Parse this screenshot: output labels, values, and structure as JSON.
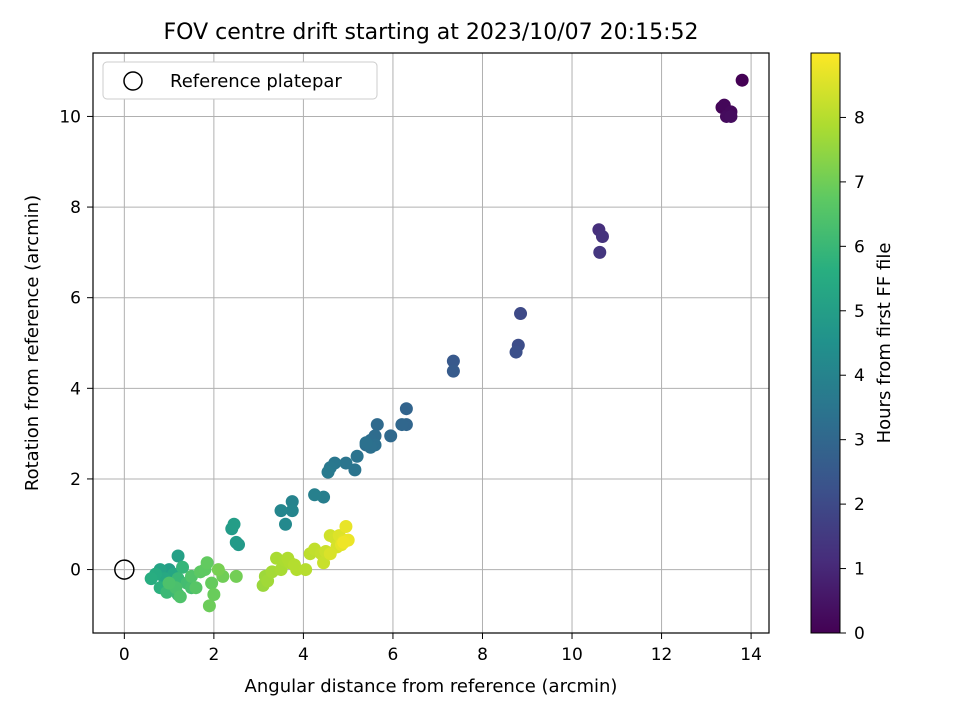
{
  "chart_data": {
    "type": "scatter",
    "title": "FOV centre drift starting at 2023/10/07 20:15:52",
    "xlabel": "Angular distance from reference (arcmin)",
    "ylabel": "Rotation from reference (arcmin)",
    "xlim": [
      -0.7,
      14.4
    ],
    "ylim": [
      -1.4,
      11.4
    ],
    "xticks": [
      0,
      2,
      4,
      6,
      8,
      10,
      12,
      14
    ],
    "yticks": [
      0,
      2,
      4,
      6,
      8,
      10
    ],
    "grid": true,
    "legend": {
      "placement": "top-left",
      "entries": [
        "Reference platepar"
      ]
    },
    "reference_point": {
      "x": 0,
      "y": 0
    },
    "colorbar": {
      "label": "Hours from first FF file",
      "colormap": "viridis",
      "range": [
        0,
        9
      ],
      "ticks": [
        0,
        1,
        2,
        3,
        4,
        5,
        6,
        7,
        8
      ]
    },
    "points": [
      [
        13.8,
        10.8,
        0.0
      ],
      [
        13.35,
        10.2,
        0.1
      ],
      [
        13.4,
        10.25,
        0.15
      ],
      [
        13.55,
        10.1,
        0.2
      ],
      [
        13.45,
        10.0,
        0.25
      ],
      [
        13.55,
        10.0,
        0.3
      ],
      [
        10.6,
        7.5,
        1.2
      ],
      [
        10.68,
        7.35,
        1.3
      ],
      [
        10.62,
        7.0,
        1.4
      ],
      [
        8.85,
        5.65,
        2.0
      ],
      [
        8.8,
        4.95,
        2.1
      ],
      [
        8.75,
        4.8,
        2.2
      ],
      [
        7.35,
        4.6,
        2.5
      ],
      [
        7.35,
        4.38,
        2.55
      ],
      [
        6.3,
        3.55,
        2.9
      ],
      [
        6.3,
        3.2,
        2.95
      ],
      [
        6.2,
        3.2,
        3.0
      ],
      [
        5.95,
        2.95,
        3.05
      ],
      [
        5.65,
        3.2,
        3.1
      ],
      [
        5.6,
        2.95,
        3.15
      ],
      [
        5.5,
        2.85,
        3.2
      ],
      [
        5.4,
        2.75,
        3.25
      ],
      [
        5.6,
        2.75,
        3.28
      ],
      [
        5.5,
        2.7,
        3.3
      ],
      [
        5.4,
        2.8,
        3.35
      ],
      [
        5.2,
        2.5,
        3.4
      ],
      [
        5.15,
        2.2,
        3.45
      ],
      [
        4.95,
        2.35,
        3.5
      ],
      [
        4.7,
        2.35,
        3.55
      ],
      [
        4.6,
        2.25,
        3.6
      ],
      [
        4.55,
        2.15,
        3.65
      ],
      [
        4.45,
        1.6,
        3.8
      ],
      [
        4.25,
        1.65,
        3.9
      ],
      [
        3.75,
        1.5,
        4.0
      ],
      [
        3.75,
        1.3,
        4.05
      ],
      [
        3.5,
        1.3,
        4.1
      ],
      [
        3.6,
        1.0,
        4.2
      ],
      [
        2.55,
        0.55,
        4.8
      ],
      [
        2.5,
        0.6,
        4.85
      ],
      [
        2.4,
        0.9,
        4.9
      ],
      [
        2.45,
        1.0,
        4.95
      ],
      [
        1.0,
        0.0,
        5.0
      ],
      [
        1.2,
        0.3,
        5.1
      ],
      [
        0.8,
        0.0,
        5.2
      ],
      [
        1.1,
        -0.1,
        5.3
      ],
      [
        0.9,
        -0.2,
        5.4
      ],
      [
        0.7,
        -0.1,
        5.5
      ],
      [
        0.6,
        -0.2,
        5.6
      ],
      [
        0.8,
        -0.4,
        5.7
      ],
      [
        1.0,
        -0.3,
        5.8
      ],
      [
        1.3,
        0.05,
        5.9
      ],
      [
        1.2,
        -0.2,
        6.0
      ],
      [
        0.95,
        -0.5,
        6.05
      ],
      [
        1.2,
        -0.55,
        6.1
      ],
      [
        1.4,
        -0.3,
        6.2
      ],
      [
        1.5,
        -0.4,
        6.3
      ],
      [
        1.15,
        -0.4,
        6.35
      ],
      [
        1.0,
        -0.3,
        6.4
      ],
      [
        1.25,
        -0.6,
        6.45
      ],
      [
        1.5,
        -0.15,
        6.5
      ],
      [
        1.6,
        -0.4,
        6.6
      ],
      [
        1.7,
        -0.05,
        6.7
      ],
      [
        1.8,
        0.0,
        6.75
      ],
      [
        1.85,
        0.15,
        6.8
      ],
      [
        1.95,
        -0.3,
        6.85
      ],
      [
        2.0,
        -0.55,
        6.9
      ],
      [
        1.9,
        -0.8,
        6.95
      ],
      [
        2.2,
        -0.15,
        7.0
      ],
      [
        2.5,
        -0.15,
        7.05
      ],
      [
        2.1,
        0.0,
        7.1
      ],
      [
        3.1,
        -0.35,
        7.6
      ],
      [
        3.15,
        -0.15,
        7.65
      ],
      [
        3.2,
        -0.25,
        7.7
      ],
      [
        3.3,
        -0.05,
        7.75
      ],
      [
        3.5,
        0.0,
        7.8
      ],
      [
        3.4,
        0.25,
        7.82
      ],
      [
        3.6,
        0.2,
        7.85
      ],
      [
        3.7,
        0.15,
        7.9
      ],
      [
        3.65,
        0.25,
        7.92
      ],
      [
        3.85,
        0.0,
        7.95
      ],
      [
        3.8,
        0.1,
        7.98
      ],
      [
        4.05,
        0.0,
        8.0
      ],
      [
        4.15,
        0.35,
        8.1
      ],
      [
        4.25,
        0.45,
        8.15
      ],
      [
        4.4,
        0.35,
        8.2
      ],
      [
        4.45,
        0.15,
        8.25
      ],
      [
        4.5,
        0.4,
        8.3
      ],
      [
        4.6,
        0.75,
        8.35
      ],
      [
        4.7,
        0.7,
        8.4
      ],
      [
        4.75,
        0.5,
        8.45
      ],
      [
        4.6,
        0.35,
        8.5
      ],
      [
        4.8,
        0.75,
        8.55
      ],
      [
        4.9,
        0.65,
        8.6
      ],
      [
        4.85,
        0.55,
        8.65
      ],
      [
        4.95,
        0.95,
        8.7
      ],
      [
        5.0,
        0.65,
        8.75
      ],
      [
        4.9,
        0.6,
        8.8
      ]
    ]
  }
}
